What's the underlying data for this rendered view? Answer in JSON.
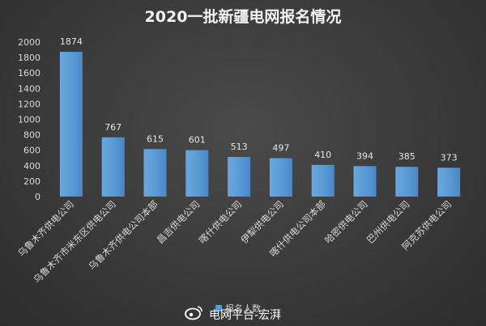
{
  "chart_data": {
    "type": "bar",
    "title": "2020一批新疆电网报名情况",
    "categories": [
      "乌鲁木齐供电公司",
      "乌鲁木齐市米东区供电公司",
      "乌鲁木齐供电公司本部",
      "昌吉供电公司",
      "喀什供电公司",
      "伊犁供电公司",
      "喀什供电公司本部",
      "哈密供电公司",
      "巴州供电公司",
      "阿克苏供电公司"
    ],
    "series": [
      {
        "name": "报名人数",
        "values": [
          1874,
          767,
          615,
          601,
          513,
          497,
          410,
          394,
          385,
          373
        ]
      }
    ],
    "ylim": [
      0,
      2000
    ],
    "yticks": [
      0,
      200,
      400,
      600,
      800,
      1000,
      1200,
      1400,
      1600,
      1800,
      2000
    ],
    "grid": false,
    "legend": "bottom",
    "colors": {
      "bar": "#5b9bd5",
      "bar_dark": "#3f7fc1"
    }
  },
  "watermark": {
    "text": "电网平台-宏湃",
    "icon": "weibo-icon"
  }
}
